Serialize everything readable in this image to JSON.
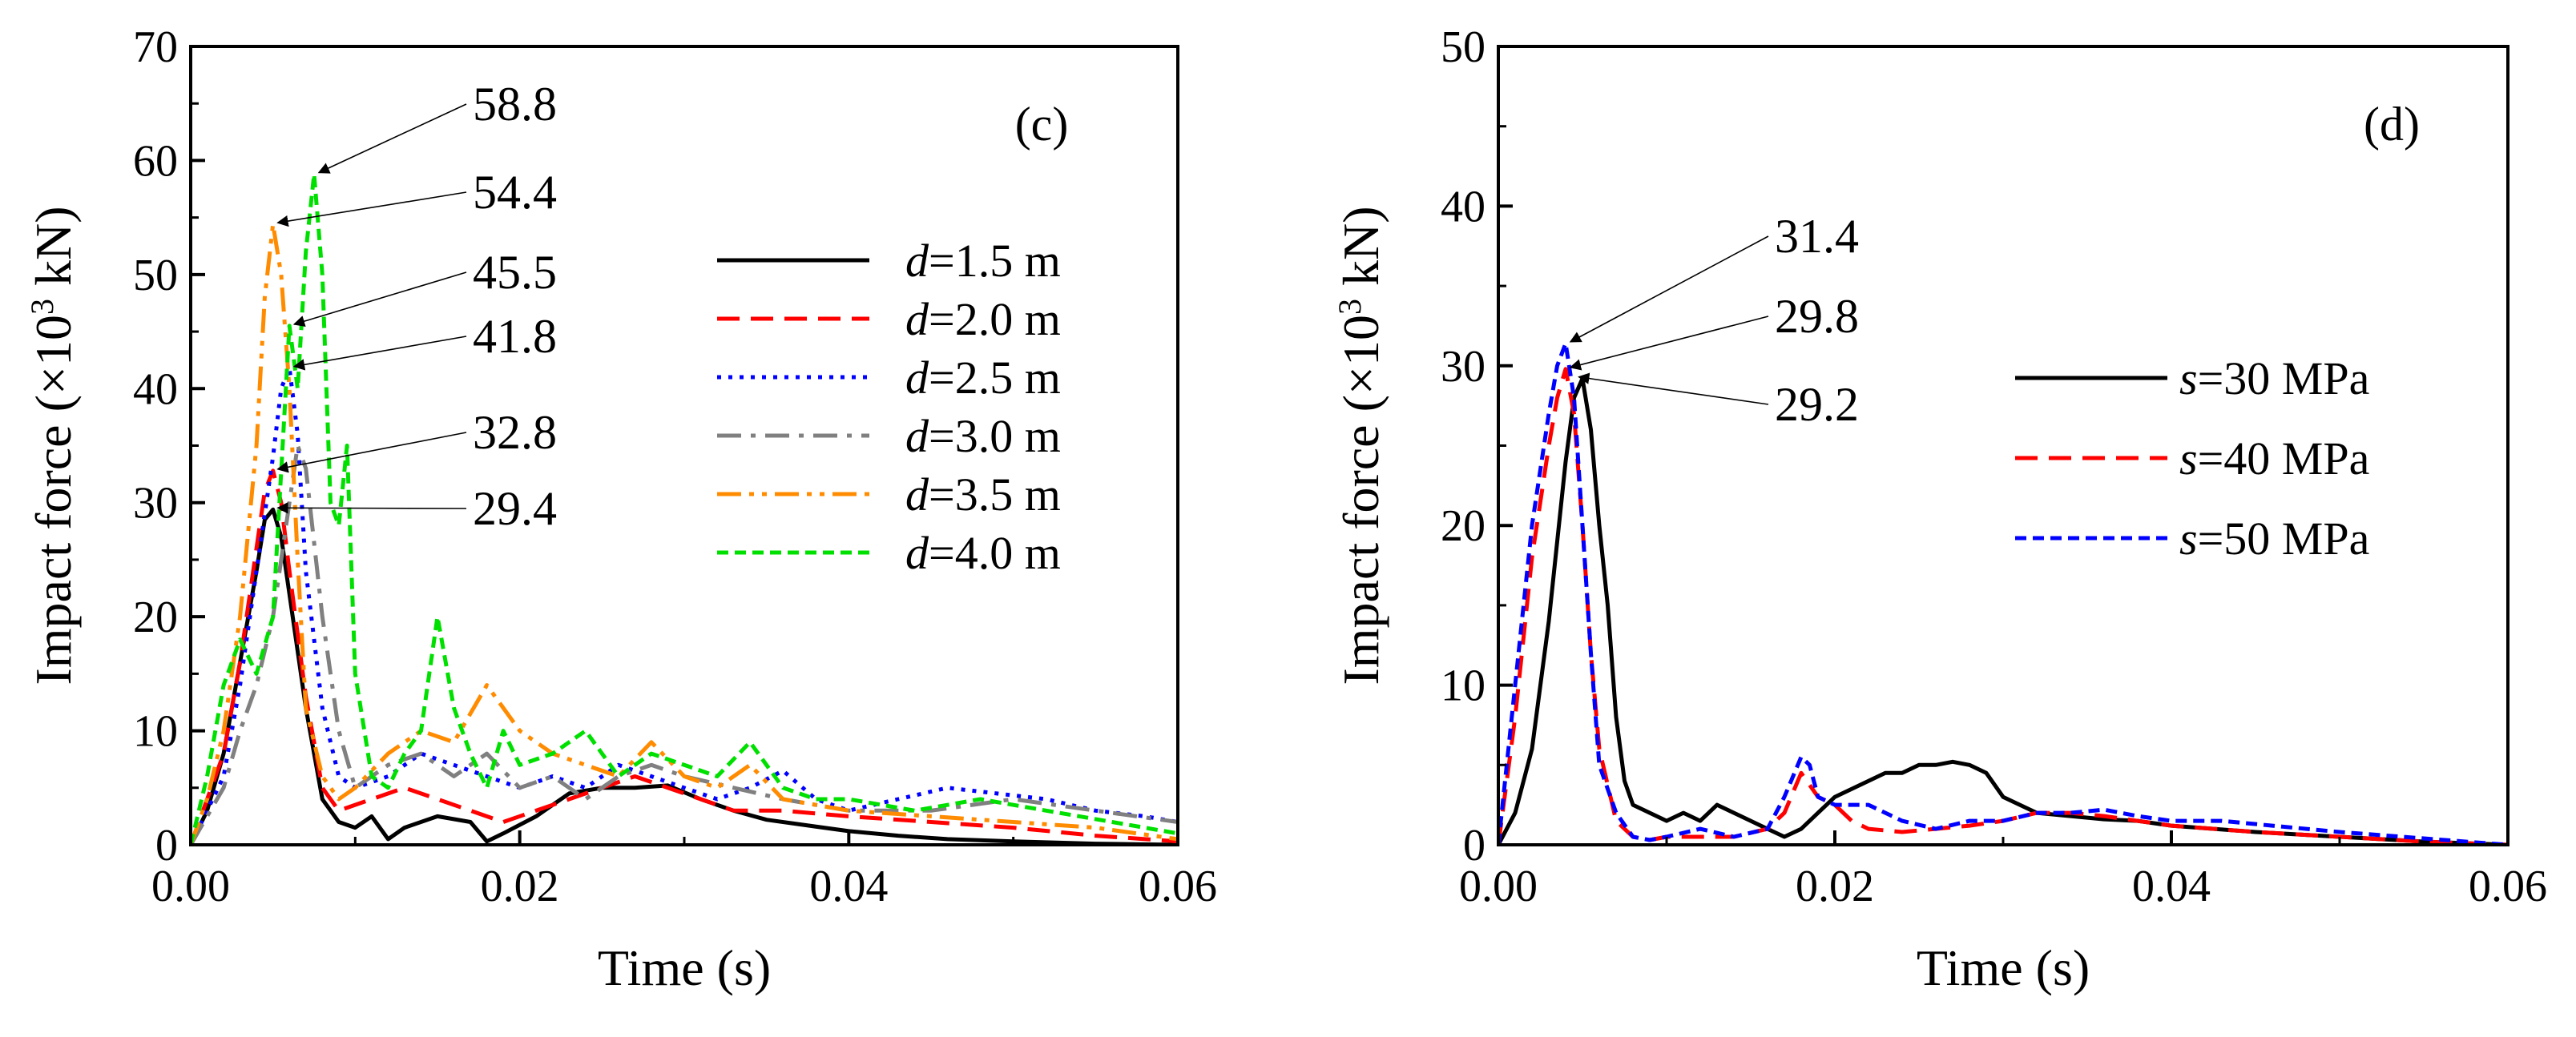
{
  "chart_data": [
    {
      "type": "line",
      "panel_label": "(c)",
      "xlabel": "Time (s)",
      "ylabel_main": "Impact force (×10",
      "ylabel_sup": "3",
      "ylabel_tail": " kN)",
      "xlim": [
        0,
        0.06
      ],
      "ylim": [
        0,
        70
      ],
      "xticks": [
        0,
        0.02,
        0.04,
        0.06
      ],
      "xtick_labels": [
        "0.00",
        "0.02",
        "0.04",
        "0.06"
      ],
      "yticks": [
        0,
        10,
        20,
        30,
        40,
        50,
        60,
        70
      ],
      "ytick_labels": [
        "0",
        "10",
        "20",
        "30",
        "40",
        "50",
        "60",
        "70"
      ],
      "legend_position": "center-right",
      "series": [
        {
          "var": "d",
          "name": "=1.5 m",
          "color": "#000000",
          "dash": "solid",
          "x": [
            0,
            0.001,
            0.002,
            0.003,
            0.004,
            0.0045,
            0.005,
            0.0055,
            0.006,
            0.007,
            0.008,
            0.009,
            0.01,
            0.011,
            0.012,
            0.013,
            0.015,
            0.017,
            0.018,
            0.019,
            0.021,
            0.023,
            0.025,
            0.027,
            0.029,
            0.031,
            0.033,
            0.035,
            0.037,
            0.04,
            0.043,
            0.046,
            0.05,
            0.055,
            0.06
          ],
          "y": [
            0,
            3,
            8,
            16,
            24,
            28.5,
            29.4,
            27,
            22,
            12,
            4,
            2,
            1.5,
            2.5,
            0.5,
            1.5,
            2.5,
            2,
            0.3,
            1,
            2.5,
            4.5,
            5,
            5,
            5.2,
            4,
            3,
            2.2,
            1.8,
            1.2,
            0.8,
            0.5,
            0.3,
            0.1,
            0
          ]
        },
        {
          "var": "d",
          "name": "=2.0 m",
          "color": "#ff0000",
          "dash": "dashed",
          "x": [
            0,
            0.002,
            0.003,
            0.004,
            0.0045,
            0.005,
            0.0055,
            0.006,
            0.007,
            0.008,
            0.009,
            0.011,
            0.013,
            0.015,
            0.017,
            0.019,
            0.021,
            0.023,
            0.025,
            0.027,
            0.029,
            0.031,
            0.033,
            0.036,
            0.04,
            0.045,
            0.05,
            0.055,
            0.06
          ],
          "y": [
            0,
            8,
            16,
            26,
            31,
            32.8,
            30,
            24,
            13,
            5,
            3,
            4,
            5,
            4,
            3,
            2,
            3,
            4,
            5,
            6,
            5,
            4,
            3,
            3,
            2.5,
            2,
            1.5,
            0.8,
            0.3
          ]
        },
        {
          "var": "d",
          "name": "=2.5 m",
          "color": "#0000ff",
          "dash": "dotted",
          "x": [
            0,
            0.002,
            0.003,
            0.004,
            0.005,
            0.0055,
            0.006,
            0.0065,
            0.007,
            0.008,
            0.009,
            0.01,
            0.012,
            0.014,
            0.016,
            0.018,
            0.02,
            0.022,
            0.024,
            0.026,
            0.028,
            0.03,
            0.032,
            0.034,
            0.036,
            0.038,
            0.04,
            0.043,
            0.046,
            0.049,
            0.052,
            0.055,
            0.058,
            0.06
          ],
          "y": [
            0,
            6,
            14,
            24,
            34,
            40,
            41.8,
            36,
            24,
            12,
            6,
            5,
            6,
            8,
            7,
            6,
            5,
            6,
            5,
            7,
            6,
            5,
            4,
            5,
            6.5,
            4,
            3,
            4,
            5,
            4.5,
            4,
            3,
            2.5,
            2
          ]
        },
        {
          "var": "d",
          "name": "=3.0 m",
          "color": "#808080",
          "dash": "dashdot",
          "x": [
            0,
            0.002,
            0.003,
            0.004,
            0.005,
            0.006,
            0.0065,
            0.007,
            0.008,
            0.009,
            0.01,
            0.012,
            0.014,
            0.016,
            0.018,
            0.02,
            0.022,
            0.024,
            0.026,
            0.028,
            0.03,
            0.033,
            0.036,
            0.04,
            0.045,
            0.05,
            0.055,
            0.06
          ],
          "y": [
            0,
            5,
            10,
            14,
            20,
            30,
            35,
            33,
            20,
            10,
            5,
            7,
            8,
            6,
            8,
            5,
            6,
            4,
            6,
            7,
            6,
            5,
            4,
            3,
            3,
            4,
            3,
            2
          ]
        },
        {
          "var": "d",
          "name": "=3.5 m",
          "color": "#ff8c00",
          "dash": "dashdotdot",
          "x": [
            0,
            0.001,
            0.002,
            0.003,
            0.004,
            0.0045,
            0.005,
            0.0055,
            0.006,
            0.0065,
            0.007,
            0.008,
            0.009,
            0.01,
            0.012,
            0.014,
            0.016,
            0.018,
            0.02,
            0.022,
            0.024,
            0.026,
            0.028,
            0.03,
            0.032,
            0.034,
            0.036,
            0.04,
            0.045,
            0.05,
            0.055,
            0.06
          ],
          "y": [
            0,
            4,
            10,
            20,
            35,
            48,
            54.4,
            50,
            40,
            25,
            12,
            6,
            4,
            5,
            8,
            10,
            9,
            14,
            10,
            8,
            7,
            6,
            9,
            6,
            5,
            7,
            4,
            3,
            2.5,
            2,
            1.5,
            0.5
          ]
        },
        {
          "var": "d",
          "name": "=4.0 m",
          "color": "#00e000",
          "dash": "shortdash",
          "x": [
            0,
            0.001,
            0.002,
            0.003,
            0.004,
            0.005,
            0.006,
            0.0065,
            0.007,
            0.0075,
            0.008,
            0.0085,
            0.009,
            0.0095,
            0.01,
            0.011,
            0.012,
            0.013,
            0.014,
            0.015,
            0.016,
            0.017,
            0.018,
            0.019,
            0.02,
            0.022,
            0.024,
            0.026,
            0.028,
            0.03,
            0.032,
            0.034,
            0.036,
            0.038,
            0.04,
            0.044,
            0.048,
            0.052,
            0.056,
            0.06
          ],
          "y": [
            0,
            6,
            14,
            18,
            15,
            20,
            45.5,
            40,
            52,
            58.8,
            50,
            30,
            28,
            35,
            15,
            6,
            5,
            8,
            10,
            20,
            12,
            8,
            5,
            10,
            7,
            8,
            10,
            6,
            8,
            7,
            6,
            9,
            5,
            4,
            4,
            3,
            4,
            3,
            2,
            1
          ]
        }
      ],
      "annotations": [
        {
          "label": "58.8",
          "x": 0.0075,
          "y": 58.8
        },
        {
          "label": "54.4",
          "x": 0.005,
          "y": 54.4
        },
        {
          "label": "45.5",
          "x": 0.006,
          "y": 45.5
        },
        {
          "label": "41.8",
          "x": 0.006,
          "y": 41.8
        },
        {
          "label": "32.8",
          "x": 0.005,
          "y": 32.8
        },
        {
          "label": "29.4",
          "x": 0.005,
          "y": 29.4
        }
      ]
    },
    {
      "type": "line",
      "panel_label": "(d)",
      "xlabel": "Time (s)",
      "ylabel_main": "Impact force (×10",
      "ylabel_sup": "3",
      "ylabel_tail": " kN)",
      "xlim": [
        0,
        0.06
      ],
      "ylim": [
        0,
        50
      ],
      "xticks": [
        0,
        0.02,
        0.04,
        0.06
      ],
      "xtick_labels": [
        "0.00",
        "0.02",
        "0.04",
        "0.06"
      ],
      "yticks": [
        0,
        10,
        20,
        30,
        40,
        50
      ],
      "ytick_labels": [
        "0",
        "10",
        "20",
        "30",
        "40",
        "50"
      ],
      "legend_position": "center-right",
      "series": [
        {
          "var": "s",
          "name": "=30 MPa",
          "color": "#000000",
          "dash": "solid",
          "x": [
            0,
            0.001,
            0.002,
            0.003,
            0.004,
            0.0045,
            0.005,
            0.0055,
            0.006,
            0.0065,
            0.007,
            0.0075,
            0.008,
            0.009,
            0.01,
            0.011,
            0.012,
            0.013,
            0.014,
            0.015,
            0.016,
            0.017,
            0.018,
            0.019,
            0.02,
            0.021,
            0.022,
            0.023,
            0.024,
            0.025,
            0.026,
            0.027,
            0.028,
            0.029,
            0.03,
            0.032,
            0.034,
            0.036,
            0.038,
            0.04,
            0.045,
            0.05,
            0.055,
            0.06
          ],
          "y": [
            0,
            2,
            6,
            14,
            24,
            28,
            29.2,
            26,
            20,
            15,
            8,
            4,
            2.5,
            2,
            1.5,
            2,
            1.5,
            2.5,
            2,
            1.5,
            1,
            0.5,
            1,
            2,
            3,
            3.5,
            4,
            4.5,
            4.5,
            5,
            5,
            5.2,
            5,
            4.5,
            3,
            2,
            1.8,
            1.6,
            1.5,
            1.2,
            0.8,
            0.5,
            0.2,
            0
          ]
        },
        {
          "var": "s",
          "name": "=40 MPa",
          "color": "#ff0000",
          "dash": "dashed",
          "x": [
            0,
            0.001,
            0.002,
            0.003,
            0.0035,
            0.004,
            0.0045,
            0.005,
            0.0055,
            0.006,
            0.007,
            0.008,
            0.009,
            0.01,
            0.012,
            0.014,
            0.016,
            0.017,
            0.018,
            0.019,
            0.02,
            0.021,
            0.022,
            0.024,
            0.026,
            0.028,
            0.03,
            0.032,
            0.034,
            0.036,
            0.038,
            0.04,
            0.045,
            0.05,
            0.055,
            0.06
          ],
          "y": [
            0,
            8,
            18,
            25,
            28,
            29.8,
            27,
            20,
            12,
            6,
            1.5,
            0.5,
            0.3,
            0.5,
            0.5,
            0.5,
            1,
            2,
            4.5,
            3,
            2.5,
            1.5,
            1,
            0.8,
            1,
            1.2,
            1.5,
            2,
            2,
            1.8,
            1.5,
            1.2,
            0.8,
            0.5,
            0.2,
            0
          ]
        },
        {
          "var": "s",
          "name": "=50 MPa",
          "color": "#0000ff",
          "dash": "shortdash",
          "x": [
            0,
            0.001,
            0.002,
            0.003,
            0.0035,
            0.004,
            0.0045,
            0.005,
            0.0055,
            0.006,
            0.007,
            0.008,
            0.009,
            0.01,
            0.012,
            0.014,
            0.016,
            0.017,
            0.018,
            0.0185,
            0.019,
            0.02,
            0.022,
            0.024,
            0.026,
            0.028,
            0.03,
            0.032,
            0.034,
            0.036,
            0.038,
            0.04,
            0.043,
            0.046,
            0.05,
            0.055,
            0.06
          ],
          "y": [
            0,
            10,
            20,
            27,
            30,
            31.4,
            28,
            20,
            12,
            5,
            2,
            0.5,
            0.3,
            0.5,
            1,
            0.5,
            1,
            3,
            5.5,
            5,
            3,
            2.5,
            2.5,
            1.5,
            1,
            1.5,
            1.5,
            2,
            2,
            2.2,
            1.8,
            1.5,
            1.5,
            1.2,
            0.8,
            0.4,
            0
          ]
        }
      ],
      "annotations": [
        {
          "label": "31.4",
          "x": 0.004,
          "y": 31.4
        },
        {
          "label": "29.8",
          "x": 0.004,
          "y": 29.8
        },
        {
          "label": "29.2",
          "x": 0.0045,
          "y": 29.2
        }
      ]
    }
  ]
}
